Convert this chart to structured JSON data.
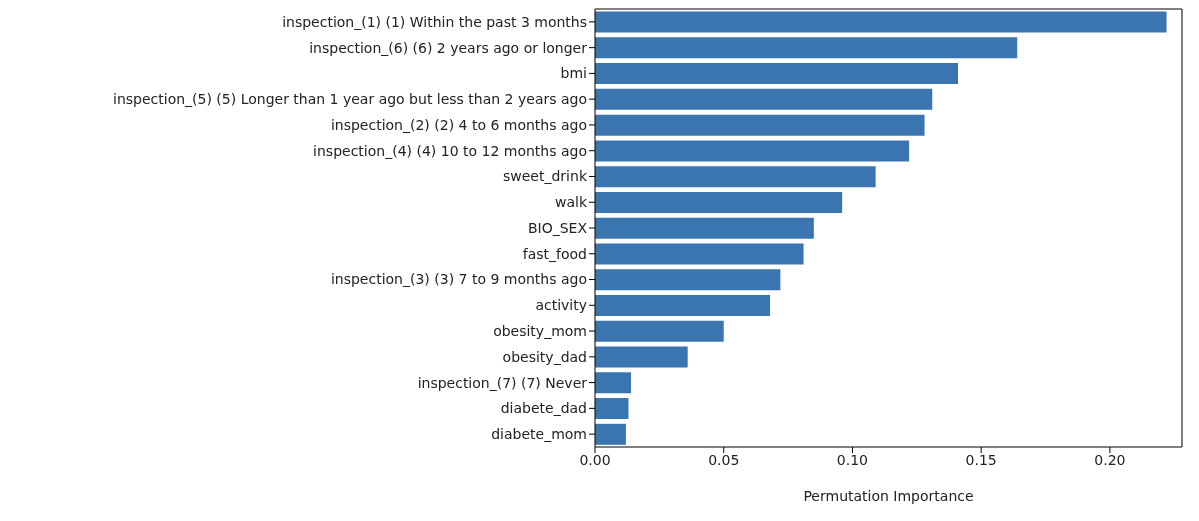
{
  "chart_data": {
    "type": "bar",
    "orientation": "horizontal",
    "xlabel": "Permutation Importance",
    "categories": [
      "inspection_(1) (1) Within the past 3 months",
      "inspection_(6) (6) 2 years ago or longer",
      "bmi",
      "inspection_(5) (5) Longer than 1 year ago but less than 2 years ago",
      "inspection_(2) (2) 4 to 6 months ago",
      "inspection_(4) (4) 10 to 12 months ago",
      "sweet_drink",
      "walk",
      "BIO_SEX",
      "fast_food",
      "inspection_(3) (3) 7 to 9 months ago",
      "activity",
      "obesity_mom",
      "obesity_dad",
      "inspection_(7) (7) Never",
      "diabete_dad",
      "diabete_mom"
    ],
    "values": [
      0.222,
      0.164,
      0.141,
      0.131,
      0.128,
      0.122,
      0.109,
      0.096,
      0.085,
      0.081,
      0.072,
      0.068,
      0.05,
      0.036,
      0.014,
      0.013,
      0.012
    ],
    "color": "#3a75af",
    "xlim": [
      0,
      0.228
    ],
    "xticks": [
      {
        "value": 0,
        "label": "0.00"
      },
      0.05,
      {
        "value": 0.1,
        "label": "0.10"
      },
      0.15,
      {
        "value": 0.2,
        "label": "0.20"
      }
    ],
    "grid": false,
    "legend": false
  }
}
